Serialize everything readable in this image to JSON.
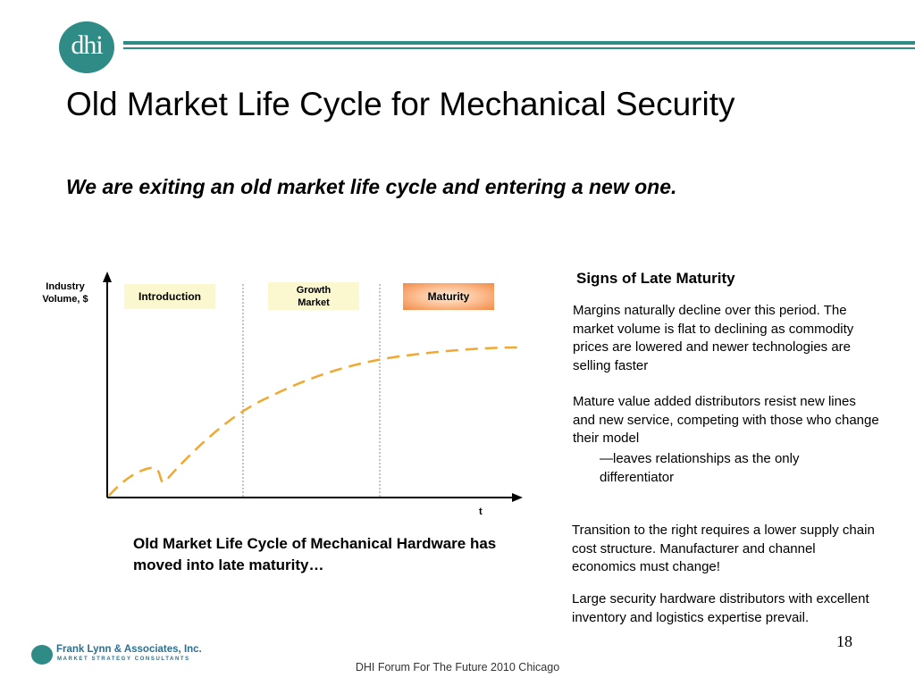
{
  "brand": {
    "logo_text": "dhi",
    "accent_color": "#2e8b86"
  },
  "slide": {
    "title": "Old Market Life Cycle for Mechanical Security",
    "subtitle": "We are exiting an old market life cycle and entering a new one.",
    "page_number": "18"
  },
  "chart": {
    "y_axis_label": "Industry Volume, $",
    "x_axis_label": "t",
    "phases": [
      {
        "label": "Introduction",
        "color": "#fbf8cf"
      },
      {
        "label": "Growth Market",
        "color": "#fbf8cf"
      },
      {
        "label": "Maturity",
        "color": "#f7a26a"
      }
    ],
    "curve_color": "#f0a830",
    "caption": "Old Market Life Cycle of Mechanical Hardware has moved into late maturity…"
  },
  "signs": {
    "heading": "Signs of Late Maturity",
    "p1": "Margins naturally decline over this period. The market volume is flat to declining as commodity prices are lowered and newer technologies are selling faster",
    "p2": "Mature value added distributors resist new lines and new service, competing with those who change their model",
    "p3": "—leaves relationships as the only differentiator",
    "p4": "Transition to the right requires a lower supply chain cost structure. Manufacturer and channel economics must change!",
    "p5": "Large security hardware distributors with excellent inventory and logistics expertise prevail."
  },
  "footer": {
    "company_name": "Frank Lynn & Associates, Inc.",
    "company_tagline": "MARKET STRATEGY CONSULTANTS",
    "event": "DHI Forum For The Future 2010 Chicago"
  }
}
